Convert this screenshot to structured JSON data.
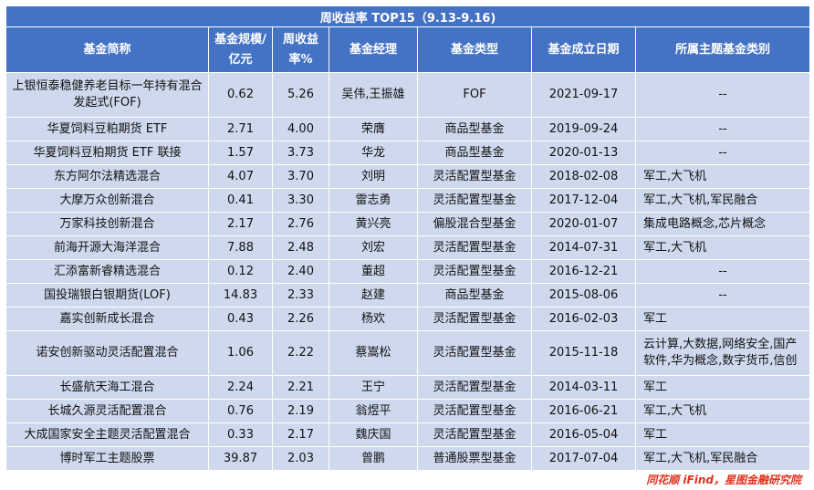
{
  "title": "周收益率 TOP15（9.13-9.16)",
  "headers": {
    "name": "基金简称",
    "scale": "基金规模/亿元",
    "return": "周收益率%",
    "manager": "基金经理",
    "type": "基金类型",
    "date": "基金成立日期",
    "topic": "所属主题基金类别"
  },
  "rows": [
    {
      "name": "上银恒泰稳健养老目标一年持有混合发起式(FOF)",
      "scale": "0.62",
      "return": "5.26",
      "manager": "吴伟,王振雄",
      "type": "FOF",
      "date": "2021-09-17",
      "topic": "--"
    },
    {
      "name": "华夏饲料豆粕期货 ETF",
      "scale": "2.71",
      "return": "4.00",
      "manager": "荣膺",
      "type": "商品型基金",
      "date": "2019-09-24",
      "topic": "--"
    },
    {
      "name": "华夏饲料豆粕期货 ETF 联接",
      "scale": "1.57",
      "return": "3.73",
      "manager": "华龙",
      "type": "商品型基金",
      "date": "2020-01-13",
      "topic": "--"
    },
    {
      "name": "东方阿尔法精选混合",
      "scale": "4.07",
      "return": "3.70",
      "manager": "刘明",
      "type": "灵活配置型基金",
      "date": "2018-02-08",
      "topic": "军工,大飞机"
    },
    {
      "name": "大摩万众创新混合",
      "scale": "0.41",
      "return": "3.30",
      "manager": "雷志勇",
      "type": "灵活配置型基金",
      "date": "2017-12-04",
      "topic": "军工,大飞机,军民融合"
    },
    {
      "name": "万家科技创新混合",
      "scale": "2.17",
      "return": "2.76",
      "manager": "黄兴亮",
      "type": "偏股混合型基金",
      "date": "2020-01-07",
      "topic": "集成电路概念,芯片概念"
    },
    {
      "name": "前海开源大海洋混合",
      "scale": "7.88",
      "return": "2.48",
      "manager": "刘宏",
      "type": "灵活配置型基金",
      "date": "2014-07-31",
      "topic": "军工,大飞机"
    },
    {
      "name": "汇添富新睿精选混合",
      "scale": "0.12",
      "return": "2.40",
      "manager": "董超",
      "type": "灵活配置型基金",
      "date": "2016-12-21",
      "topic": "--"
    },
    {
      "name": "国投瑞银白银期货(LOF)",
      "scale": "14.83",
      "return": "2.33",
      "manager": "赵建",
      "type": "商品型基金",
      "date": "2015-08-06",
      "topic": "--"
    },
    {
      "name": "嘉实创新成长混合",
      "scale": "0.43",
      "return": "2.26",
      "manager": "杨欢",
      "type": "灵活配置型基金",
      "date": "2016-02-03",
      "topic": "军工"
    },
    {
      "name": "诺安创新驱动灵活配置混合",
      "scale": "1.06",
      "return": "2.22",
      "manager": "蔡嵩松",
      "type": "灵活配置型基金",
      "date": "2015-11-18",
      "topic": "云计算,大数据,网络安全,国产软件,华为概念,数字货币,信创"
    },
    {
      "name": "长盛航天海工混合",
      "scale": "2.24",
      "return": "2.21",
      "manager": "王宁",
      "type": "灵活配置型基金",
      "date": "2014-03-11",
      "topic": "军工"
    },
    {
      "name": "长城久源灵活配置混合",
      "scale": "0.76",
      "return": "2.19",
      "manager": "翁煜平",
      "type": "灵活配置型基金",
      "date": "2016-06-21",
      "topic": "军工,大飞机"
    },
    {
      "name": "大成国家安全主题灵活配置混合",
      "scale": "0.33",
      "return": "2.17",
      "manager": "魏庆国",
      "type": "灵活配置型基金",
      "date": "2016-05-04",
      "topic": "军工"
    },
    {
      "name": "博时军工主题股票",
      "scale": "39.87",
      "return": "2.03",
      "manager": "曾鹏",
      "type": "普通股票型基金",
      "date": "2017-07-04",
      "topic": "军工,大飞机,军民融合"
    }
  ],
  "source": "同花顺 iFind，星图金融研究院"
}
